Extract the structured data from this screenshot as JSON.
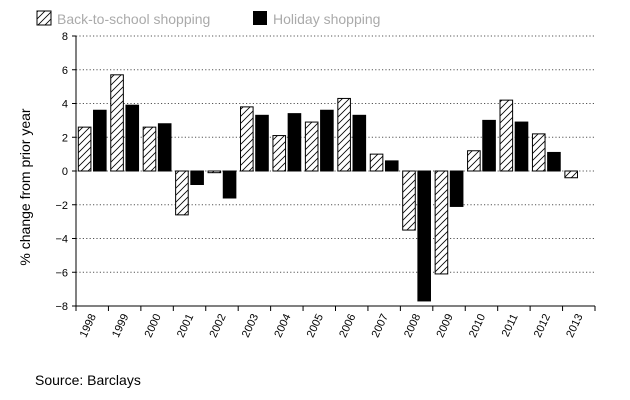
{
  "source": "Source: Barclays",
  "colors": {
    "holiday": "#000000",
    "back_to_school": "#ffffff",
    "grid": "#555555",
    "legend_text": "#aaaaaa"
  },
  "chart_data": {
    "type": "bar",
    "categories": [
      "1998",
      "1999",
      "2000",
      "2001",
      "2002",
      "2003",
      "2004",
      "2005",
      "2006",
      "2007",
      "2008",
      "2009",
      "2010",
      "2011",
      "2012",
      "2013"
    ],
    "series": [
      {
        "name": "Back-to-school shopping",
        "pattern": "hatched",
        "values": [
          2.6,
          5.7,
          2.6,
          -2.6,
          -0.1,
          3.8,
          2.1,
          2.9,
          4.3,
          1.0,
          -3.5,
          -6.1,
          1.2,
          4.2,
          2.2,
          -0.4
        ]
      },
      {
        "name": "Holiday shopping",
        "pattern": "solid",
        "values": [
          3.6,
          3.9,
          2.8,
          -0.8,
          -1.6,
          3.3,
          3.4,
          3.6,
          3.3,
          0.6,
          -7.7,
          -2.1,
          3.0,
          2.9,
          1.1,
          null
        ]
      }
    ],
    "ylabel": "% change from prior year",
    "xlabel": "",
    "ylim": [
      -8,
      8
    ],
    "yticks": [
      -8,
      -6,
      -4,
      -2,
      0,
      2,
      4,
      6,
      8
    ],
    "grid": true,
    "grid_style": "dotted horizontal",
    "legend_position": "top-left"
  }
}
